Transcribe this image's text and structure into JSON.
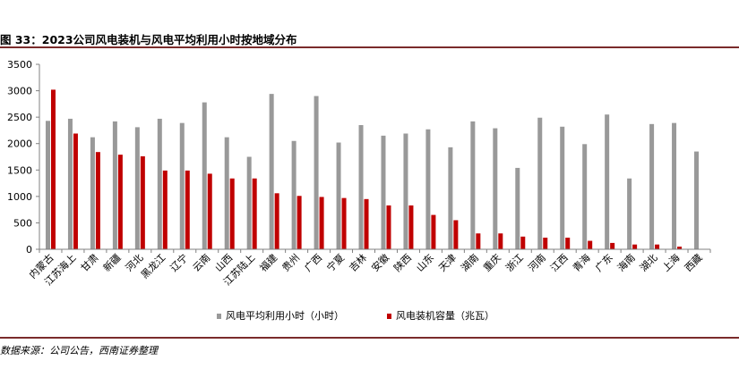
{
  "figure": {
    "title": "图 33：2023公司风电装机与风电平均利用小时按地域分布",
    "source": "数据来源：公司公告，西南证券整理"
  },
  "chart_data": {
    "type": "bar",
    "categories": [
      "内蒙古",
      "江苏海上",
      "甘肃",
      "新疆",
      "河北",
      "黑龙江",
      "辽宁",
      "云南",
      "山西",
      "江苏陆上",
      "福建",
      "贵州",
      "广西",
      "宁夏",
      "吉林",
      "安徽",
      "陕西",
      "山东",
      "天津",
      "湖南",
      "重庆",
      "浙江",
      "河南",
      "江西",
      "青海",
      "广东",
      "海南",
      "湖北",
      "上海",
      "西藏"
    ],
    "series": [
      {
        "name": "风电平均利用小时（小时）",
        "color": "#999999",
        "values": [
          2430,
          2470,
          2120,
          2420,
          2310,
          2470,
          2390,
          2780,
          2120,
          1750,
          2940,
          2050,
          2900,
          2020,
          2350,
          2150,
          2190,
          2270,
          1930,
          2420,
          2290,
          1540,
          2490,
          2320,
          1990,
          2550,
          1340,
          2370,
          2390,
          1850
        ]
      },
      {
        "name": "风电装机容量（兆瓦）",
        "color": "#c00000",
        "values": [
          3020,
          2190,
          1840,
          1790,
          1760,
          1490,
          1490,
          1430,
          1340,
          1340,
          1060,
          1010,
          990,
          970,
          950,
          830,
          830,
          650,
          550,
          300,
          300,
          240,
          220,
          220,
          160,
          120,
          90,
          90,
          50,
          0
        ]
      }
    ],
    "yticks": [
      0,
      500,
      1000,
      1500,
      2000,
      2500,
      3000,
      3500
    ],
    "ylim": [
      0,
      3500
    ],
    "legend_position": "bottom"
  }
}
